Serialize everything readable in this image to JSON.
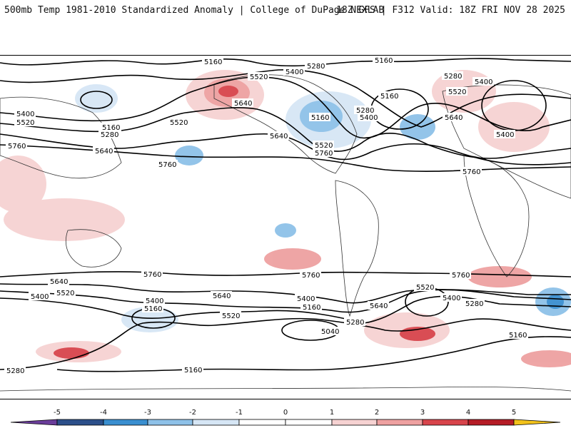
{
  "header": {
    "left": "500mb Temp 1981-2010 Standardized Anomaly | College of DuPage NEXLAB",
    "right": "18Z GFS | F312 Valid: 18Z FRI NOV 28 2025"
  },
  "colors": {
    "neg5": "#6a3d9a",
    "neg4": "#2c4f8a",
    "neg3": "#3a8fd0",
    "neg2": "#8ec1e8",
    "neg1": "#d6e6f5",
    "zero": "#ffffff",
    "pos1": "#f6d2d2",
    "pos2": "#eea1a1",
    "pos3": "#d8444b",
    "pos4": "#b51c26",
    "pos5": "#7a0b16",
    "pos6": "#f2c21b"
  },
  "colorbar": {
    "ticks": [
      "-5",
      "-4",
      "-3",
      "-2",
      "-1",
      "0",
      "1",
      "2",
      "3",
      "4",
      "5"
    ]
  },
  "contour_labels": {
    "h5160": "5160",
    "h5280": "5280",
    "h5400": "5400",
    "h5520": "5520",
    "h5640": "5640",
    "h5760": "5760",
    "h5040": "5040"
  }
}
